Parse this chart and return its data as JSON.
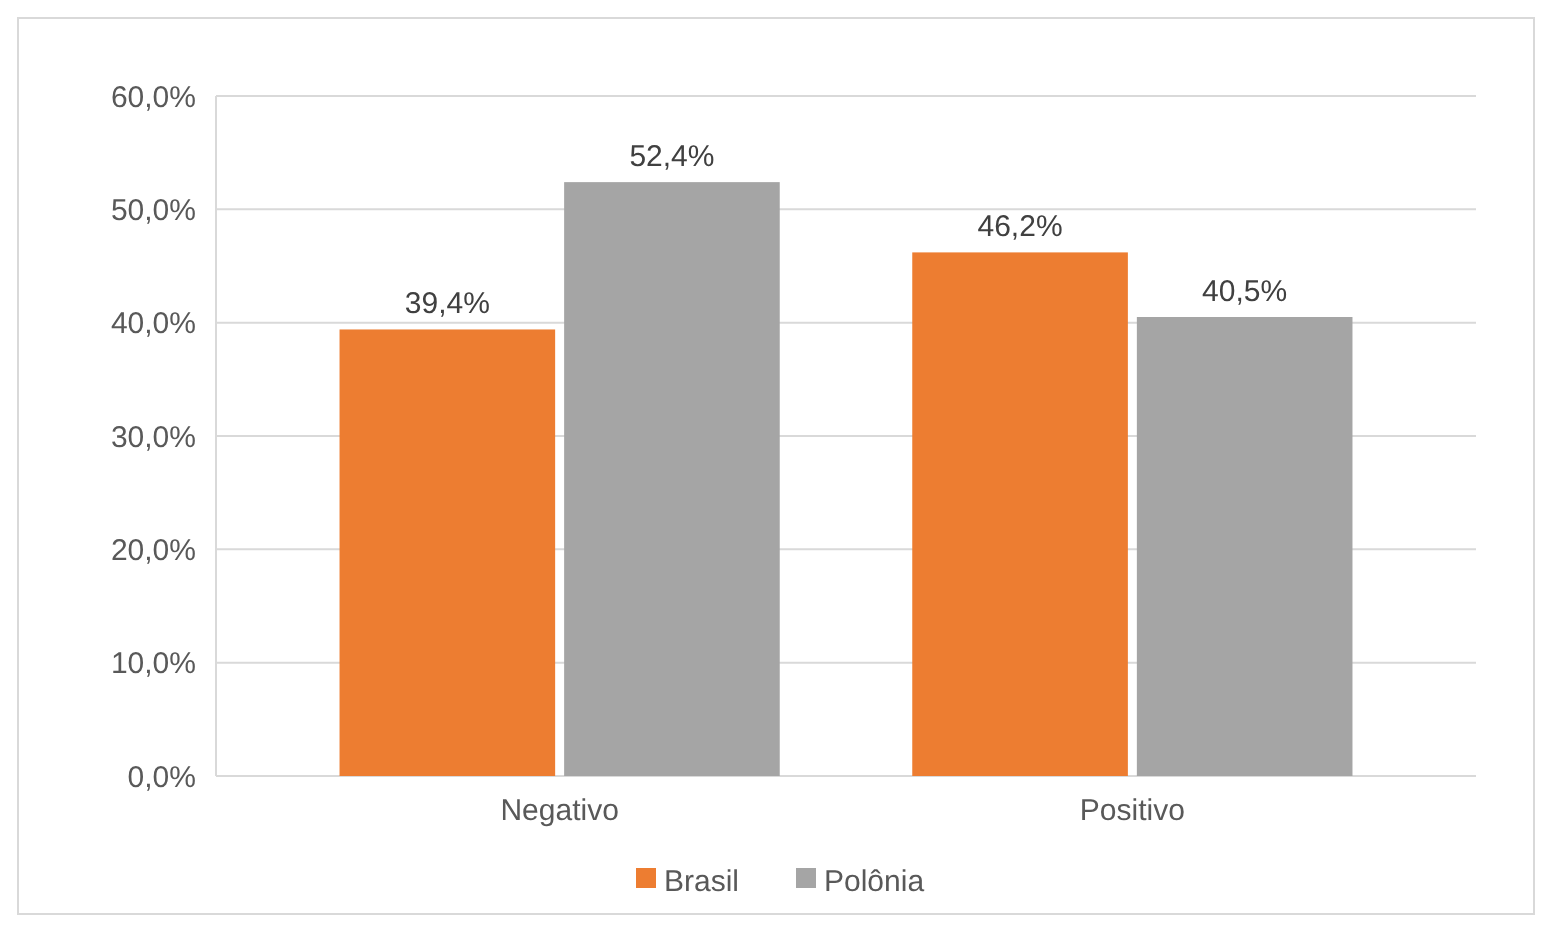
{
  "chart_data": {
    "type": "bar",
    "categories": [
      "Negativo",
      "Positivo"
    ],
    "series": [
      {
        "name": "Brasil",
        "color": "#ed7d31",
        "values": [
          39.4,
          46.2
        ],
        "value_labels": [
          "39,4%",
          "46,2%"
        ]
      },
      {
        "name": "Polônia",
        "color": "#a5a5a5",
        "values": [
          52.4,
          40.5
        ],
        "value_labels": [
          "52,4%",
          "40,5%"
        ]
      }
    ],
    "ylim": [
      0,
      60
    ],
    "yticks": [
      {
        "value": 0,
        "label": "0,0%"
      },
      {
        "value": 10,
        "label": "10,0%"
      },
      {
        "value": 20,
        "label": "20,0%"
      },
      {
        "value": 30,
        "label": "30,0%"
      },
      {
        "value": 40,
        "label": "40,0%"
      },
      {
        "value": 50,
        "label": "50,0%"
      },
      {
        "value": 60,
        "label": "60,0%"
      }
    ],
    "grid": "y",
    "legend": "bottom"
  }
}
